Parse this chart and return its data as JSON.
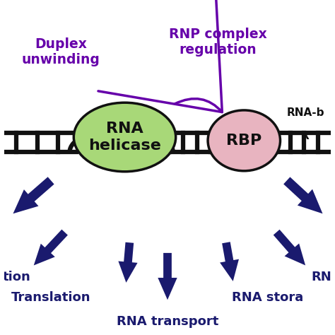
{
  "background_color": "#ffffff",
  "purple_color": "#6600aa",
  "navy_color": "#1a1a6e",
  "black_color": "#111111",
  "green_ellipse_color": "#a8d878",
  "pink_ellipse_color": "#e8b4c0",
  "title_rnp": "RNP complex\nregulation",
  "title_duplex": "Duplex\nunwinding",
  "label_helicase": "RNA\nhelicase",
  "label_rbp": "RBP",
  "figsize": [
    4.74,
    4.74
  ],
  "dpi": 100
}
